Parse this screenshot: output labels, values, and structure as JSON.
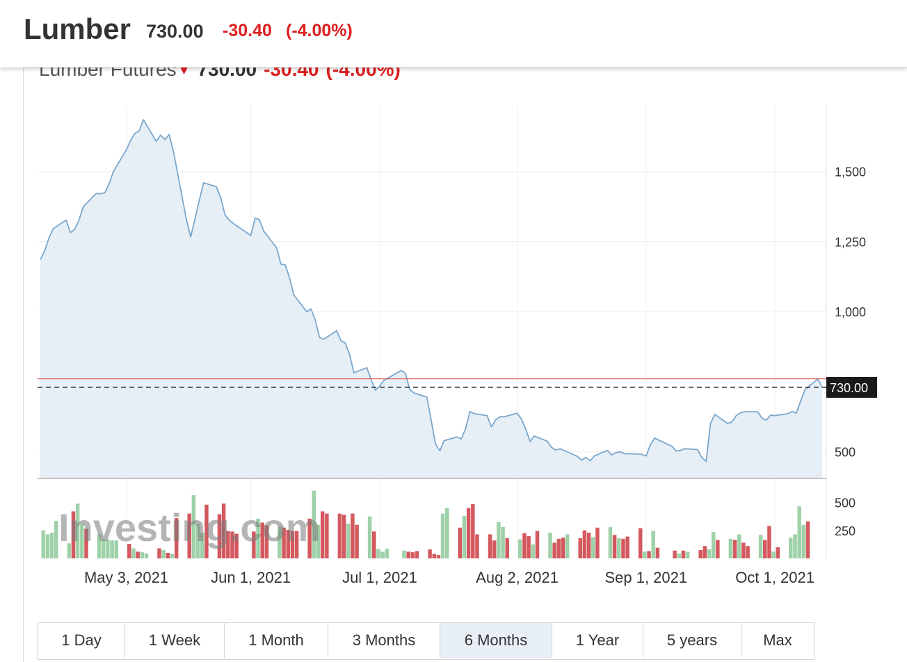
{
  "header": {
    "name": "Lumber",
    "price": "730.00",
    "change": "-30.40",
    "change_pct": "(-4.00%)"
  },
  "chart_title": {
    "name": "Lumber Futures",
    "price": "730.00",
    "change": "-30.40",
    "change_pct": "(-4.00%)"
  },
  "watermark": "Investing.com",
  "last_price_label": "730.00",
  "range_buttons": [
    "1 Day",
    "1 Week",
    "1 Month",
    "3 Months",
    "6 Months",
    "1 Year",
    "5 years",
    "Max"
  ],
  "active_range": "6 Months",
  "colors": {
    "line": "#7ba7cc",
    "area": "#e6eef6",
    "up_volume": "#9fd1a9",
    "down_volume": "#d3595f",
    "previous_close_line": "#e04a4a",
    "negative": "#dd1f1f",
    "last_price_tag": "#1a1a1a"
  },
  "chart_data": {
    "type": "area",
    "title": "Lumber Futures",
    "x_tick_labels": [
      "May 3, 2021",
      "Jun 1, 2021",
      "Jul 1, 2021",
      "Aug 2, 2021",
      "Sep 1, 2021",
      "Oct 1, 2021"
    ],
    "x_ticks": [
      "2021-05-03",
      "2021-06-01",
      "2021-07-01",
      "2021-08-02",
      "2021-09-01",
      "2021-10-01"
    ],
    "price_axis": {
      "ticks": [
        500,
        1000,
        1250,
        1500
      ],
      "tick_labels": [
        "500",
        "1,000",
        "1,250",
        "1,500"
      ],
      "ylim": [
        405,
        1740
      ]
    },
    "volume_axis": {
      "ticks": [
        250,
        500
      ],
      "tick_labels": [
        "250",
        "500"
      ],
      "ylim": [
        0,
        640
      ]
    },
    "previous_close": 760.4,
    "last_price": 730.0,
    "grid": true,
    "price_series": [
      [
        "2021-04-13",
        1186
      ],
      [
        "2021-04-14",
        1217
      ],
      [
        "2021-04-15",
        1263
      ],
      [
        "2021-04-16",
        1296
      ],
      [
        "2021-04-19",
        1327
      ],
      [
        "2021-04-20",
        1282
      ],
      [
        "2021-04-21",
        1294
      ],
      [
        "2021-04-22",
        1327
      ],
      [
        "2021-04-23",
        1375
      ],
      [
        "2021-04-26",
        1422
      ],
      [
        "2021-04-27",
        1421
      ],
      [
        "2021-04-28",
        1424
      ],
      [
        "2021-04-29",
        1456
      ],
      [
        "2021-04-30",
        1500
      ],
      [
        "2021-05-03",
        1577
      ],
      [
        "2021-05-04",
        1611
      ],
      [
        "2021-05-05",
        1636
      ],
      [
        "2021-05-06",
        1645
      ],
      [
        "2021-05-07",
        1685
      ],
      [
        "2021-05-10",
        1608
      ],
      [
        "2021-05-11",
        1630
      ],
      [
        "2021-05-12",
        1614
      ],
      [
        "2021-05-13",
        1632
      ],
      [
        "2021-05-14",
        1570
      ],
      [
        "2021-05-17",
        1329
      ],
      [
        "2021-05-18",
        1267
      ],
      [
        "2021-05-19",
        1331
      ],
      [
        "2021-05-20",
        1397
      ],
      [
        "2021-05-21",
        1460
      ],
      [
        "2021-05-24",
        1446
      ],
      [
        "2021-05-25",
        1406
      ],
      [
        "2021-05-26",
        1345
      ],
      [
        "2021-05-27",
        1326
      ],
      [
        "2021-05-28",
        1314
      ],
      [
        "2021-06-01",
        1272
      ],
      [
        "2021-06-02",
        1334
      ],
      [
        "2021-06-03",
        1328
      ],
      [
        "2021-06-04",
        1288
      ],
      [
        "2021-06-07",
        1228
      ],
      [
        "2021-06-08",
        1170
      ],
      [
        "2021-06-09",
        1167
      ],
      [
        "2021-06-10",
        1122
      ],
      [
        "2021-06-11",
        1060
      ],
      [
        "2021-06-14",
        1000
      ],
      [
        "2021-06-15",
        1010
      ],
      [
        "2021-06-16",
        970
      ],
      [
        "2021-06-17",
        908
      ],
      [
        "2021-06-18",
        902
      ],
      [
        "2021-06-21",
        932
      ],
      [
        "2021-06-22",
        896
      ],
      [
        "2021-06-23",
        888
      ],
      [
        "2021-06-24",
        847
      ],
      [
        "2021-06-25",
        782
      ],
      [
        "2021-06-28",
        800
      ],
      [
        "2021-06-29",
        758
      ],
      [
        "2021-06-30",
        720
      ],
      [
        "2021-07-01",
        735
      ],
      [
        "2021-07-02",
        755
      ],
      [
        "2021-07-06",
        790
      ],
      [
        "2021-07-07",
        780
      ],
      [
        "2021-07-08",
        722
      ],
      [
        "2021-07-09",
        710
      ],
      [
        "2021-07-12",
        695
      ],
      [
        "2021-07-13",
        611
      ],
      [
        "2021-07-14",
        527
      ],
      [
        "2021-07-15",
        504
      ],
      [
        "2021-07-16",
        540
      ],
      [
        "2021-07-19",
        553
      ],
      [
        "2021-07-20",
        546
      ],
      [
        "2021-07-21",
        583
      ],
      [
        "2021-07-22",
        644
      ],
      [
        "2021-07-23",
        636
      ],
      [
        "2021-07-26",
        629
      ],
      [
        "2021-07-27",
        589
      ],
      [
        "2021-07-28",
        614
      ],
      [
        "2021-07-29",
        625
      ],
      [
        "2021-07-30",
        625
      ],
      [
        "2021-08-02",
        638
      ],
      [
        "2021-08-03",
        617
      ],
      [
        "2021-08-04",
        581
      ],
      [
        "2021-08-05",
        537
      ],
      [
        "2021-08-06",
        556
      ],
      [
        "2021-08-09",
        538
      ],
      [
        "2021-08-10",
        516
      ],
      [
        "2021-08-11",
        506
      ],
      [
        "2021-08-12",
        511
      ],
      [
        "2021-08-13",
        504
      ],
      [
        "2021-08-16",
        484
      ],
      [
        "2021-08-17",
        470
      ],
      [
        "2021-08-18",
        480
      ],
      [
        "2021-08-19",
        468
      ],
      [
        "2021-08-20",
        486
      ],
      [
        "2021-08-23",
        505
      ],
      [
        "2021-08-24",
        489
      ],
      [
        "2021-08-25",
        497
      ],
      [
        "2021-08-26",
        500
      ],
      [
        "2021-08-27",
        493
      ],
      [
        "2021-08-30",
        492
      ],
      [
        "2021-08-31",
        491
      ],
      [
        "2021-09-01",
        485
      ],
      [
        "2021-09-02",
        524
      ],
      [
        "2021-09-03",
        549
      ],
      [
        "2021-09-07",
        520
      ],
      [
        "2021-09-08",
        503
      ],
      [
        "2021-09-09",
        505
      ],
      [
        "2021-09-10",
        511
      ],
      [
        "2021-09-13",
        508
      ],
      [
        "2021-09-14",
        479
      ],
      [
        "2021-09-15",
        466
      ],
      [
        "2021-09-16",
        600
      ],
      [
        "2021-09-17",
        634
      ],
      [
        "2021-09-20",
        601
      ],
      [
        "2021-09-21",
        607
      ],
      [
        "2021-09-22",
        629
      ],
      [
        "2021-09-23",
        640
      ],
      [
        "2021-09-24",
        643
      ],
      [
        "2021-09-27",
        643
      ],
      [
        "2021-09-28",
        620
      ],
      [
        "2021-09-29",
        613
      ],
      [
        "2021-09-30",
        631
      ],
      [
        "2021-10-01",
        629
      ],
      [
        "2021-10-04",
        636
      ],
      [
        "2021-10-05",
        644
      ],
      [
        "2021-10-06",
        638
      ],
      [
        "2021-10-07",
        681
      ],
      [
        "2021-10-08",
        722
      ],
      [
        "2021-10-11",
        760
      ],
      [
        "2021-10-12",
        730
      ]
    ],
    "volume_series": [
      [
        "2021-04-13",
        250,
        "up"
      ],
      [
        "2021-04-14",
        215,
        "up"
      ],
      [
        "2021-04-15",
        230,
        "up"
      ],
      [
        "2021-04-16",
        335,
        "up"
      ],
      [
        "2021-04-19",
        135,
        "up"
      ],
      [
        "2021-04-20",
        420,
        "down"
      ],
      [
        "2021-04-21",
        490,
        "up"
      ],
      [
        "2021-04-22",
        310,
        "up"
      ],
      [
        "2021-04-23",
        265,
        "down"
      ],
      [
        "2021-04-26",
        215,
        "up"
      ],
      [
        "2021-04-27",
        170,
        "up"
      ],
      [
        "2021-04-28",
        170,
        "up"
      ],
      [
        "2021-04-29",
        160,
        "up"
      ],
      [
        "2021-04-30",
        160,
        "up"
      ],
      [
        "2021-05-03",
        130,
        "down"
      ],
      [
        "2021-05-04",
        90,
        "up"
      ],
      [
        "2021-05-05",
        60,
        "down"
      ],
      [
        "2021-05-06",
        55,
        "up"
      ],
      [
        "2021-05-07",
        45,
        "up"
      ],
      [
        "2021-05-10",
        90,
        "down"
      ],
      [
        "2021-05-11",
        75,
        "up"
      ],
      [
        "2021-05-12",
        50,
        "down"
      ],
      [
        "2021-05-13",
        40,
        "up"
      ],
      [
        "2021-05-14",
        360,
        "down"
      ],
      [
        "2021-05-17",
        400,
        "down"
      ],
      [
        "2021-05-18",
        565,
        "up"
      ],
      [
        "2021-05-19",
        305,
        "up"
      ],
      [
        "2021-05-20",
        230,
        "up"
      ],
      [
        "2021-05-21",
        480,
        "down"
      ],
      [
        "2021-05-24",
        395,
        "down"
      ],
      [
        "2021-05-25",
        490,
        "down"
      ],
      [
        "2021-05-26",
        245,
        "down"
      ],
      [
        "2021-05-27",
        240,
        "down"
      ],
      [
        "2021-05-28",
        220,
        "down"
      ],
      [
        "2021-06-01",
        240,
        "down"
      ],
      [
        "2021-06-02",
        355,
        "up"
      ],
      [
        "2021-06-03",
        320,
        "down"
      ],
      [
        "2021-06-04",
        295,
        "down"
      ],
      [
        "2021-06-07",
        285,
        "up"
      ],
      [
        "2021-06-08",
        275,
        "down"
      ],
      [
        "2021-06-09",
        255,
        "down"
      ],
      [
        "2021-06-10",
        245,
        "down"
      ],
      [
        "2021-06-11",
        245,
        "down"
      ],
      [
        "2021-06-14",
        355,
        "down"
      ],
      [
        "2021-06-15",
        605,
        "up"
      ],
      [
        "2021-06-16",
        300,
        "up"
      ],
      [
        "2021-06-17",
        420,
        "down"
      ],
      [
        "2021-06-18",
        400,
        "down"
      ],
      [
        "2021-06-21",
        400,
        "down"
      ],
      [
        "2021-06-22",
        390,
        "down"
      ],
      [
        "2021-06-23",
        310,
        "up"
      ],
      [
        "2021-06-24",
        400,
        "down"
      ],
      [
        "2021-06-25",
        300,
        "down"
      ],
      [
        "2021-06-28",
        375,
        "up"
      ],
      [
        "2021-06-29",
        240,
        "down"
      ],
      [
        "2021-06-30",
        85,
        "up"
      ],
      [
        "2021-07-01",
        60,
        "up"
      ],
      [
        "2021-07-02",
        85,
        "up"
      ],
      [
        "2021-07-06",
        70,
        "up"
      ],
      [
        "2021-07-07",
        60,
        "down"
      ],
      [
        "2021-07-08",
        55,
        "down"
      ],
      [
        "2021-07-09",
        65,
        "down"
      ],
      [
        "2021-07-12",
        80,
        "down"
      ],
      [
        "2021-07-13",
        40,
        "down"
      ],
      [
        "2021-07-14",
        30,
        "down"
      ],
      [
        "2021-07-15",
        400,
        "up"
      ],
      [
        "2021-07-16",
        450,
        "up"
      ],
      [
        "2021-07-19",
        275,
        "down"
      ],
      [
        "2021-07-20",
        380,
        "up"
      ],
      [
        "2021-07-21",
        450,
        "down"
      ],
      [
        "2021-07-22",
        485,
        "down"
      ],
      [
        "2021-07-23",
        215,
        "down"
      ],
      [
        "2021-07-26",
        215,
        "down"
      ],
      [
        "2021-07-27",
        160,
        "down"
      ],
      [
        "2021-07-28",
        325,
        "up"
      ],
      [
        "2021-07-29",
        280,
        "up"
      ],
      [
        "2021-07-30",
        180,
        "down"
      ],
      [
        "2021-08-02",
        170,
        "up"
      ],
      [
        "2021-08-03",
        225,
        "down"
      ],
      [
        "2021-08-04",
        200,
        "down"
      ],
      [
        "2021-08-05",
        125,
        "up"
      ],
      [
        "2021-08-06",
        245,
        "down"
      ],
      [
        "2021-08-09",
        230,
        "up"
      ],
      [
        "2021-08-10",
        140,
        "down"
      ],
      [
        "2021-08-11",
        175,
        "down"
      ],
      [
        "2021-08-12",
        185,
        "down"
      ],
      [
        "2021-08-13",
        215,
        "up"
      ],
      [
        "2021-08-16",
        180,
        "down"
      ],
      [
        "2021-08-17",
        250,
        "down"
      ],
      [
        "2021-08-18",
        230,
        "down"
      ],
      [
        "2021-08-19",
        190,
        "up"
      ],
      [
        "2021-08-20",
        275,
        "down"
      ],
      [
        "2021-08-23",
        280,
        "up"
      ],
      [
        "2021-08-24",
        210,
        "down"
      ],
      [
        "2021-08-25",
        180,
        "up"
      ],
      [
        "2021-08-26",
        175,
        "down"
      ],
      [
        "2021-08-27",
        195,
        "down"
      ],
      [
        "2021-08-30",
        270,
        "down"
      ],
      [
        "2021-08-31",
        60,
        "up"
      ],
      [
        "2021-09-01",
        65,
        "down"
      ],
      [
        "2021-09-02",
        245,
        "up"
      ],
      [
        "2021-09-03",
        95,
        "down"
      ],
      [
        "2021-09-07",
        70,
        "down"
      ],
      [
        "2021-09-08",
        45,
        "up"
      ],
      [
        "2021-09-09",
        70,
        "down"
      ],
      [
        "2021-09-10",
        60,
        "up"
      ],
      [
        "2021-09-13",
        75,
        "down"
      ],
      [
        "2021-09-14",
        110,
        "down"
      ],
      [
        "2021-09-15",
        80,
        "up"
      ],
      [
        "2021-09-16",
        235,
        "up"
      ],
      [
        "2021-09-17",
        165,
        "down"
      ],
      [
        "2021-09-20",
        175,
        "up"
      ],
      [
        "2021-09-21",
        165,
        "down"
      ],
      [
        "2021-09-22",
        215,
        "up"
      ],
      [
        "2021-09-23",
        140,
        "down"
      ],
      [
        "2021-09-24",
        110,
        "down"
      ],
      [
        "2021-09-27",
        210,
        "up"
      ],
      [
        "2021-09-28",
        165,
        "down"
      ],
      [
        "2021-09-29",
        290,
        "down"
      ],
      [
        "2021-09-30",
        60,
        "up"
      ],
      [
        "2021-10-01",
        100,
        "down"
      ],
      [
        "2021-10-04",
        185,
        "up"
      ],
      [
        "2021-10-05",
        215,
        "up"
      ],
      [
        "2021-10-06",
        465,
        "up"
      ],
      [
        "2021-10-07",
        300,
        "up"
      ],
      [
        "2021-10-08",
        330,
        "down"
      ]
    ]
  }
}
